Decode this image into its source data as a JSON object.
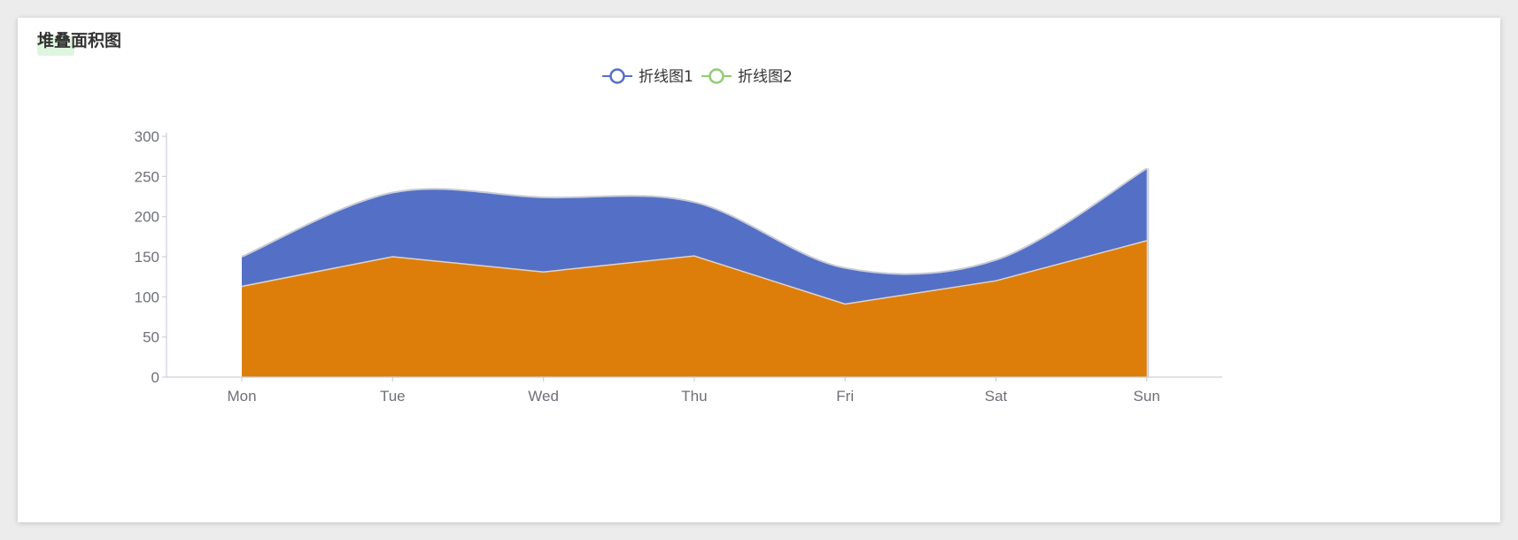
{
  "card": {
    "title": "堆叠面积图"
  },
  "chart_data": {
    "type": "area",
    "stacked": true,
    "categories": [
      "Mon",
      "Tue",
      "Wed",
      "Thu",
      "Fri",
      "Sat",
      "Sun"
    ],
    "series": [
      {
        "name": "折线图1",
        "values": [
          37,
          80,
          93,
          67,
          45,
          26,
          90
        ],
        "color": "#5470c6",
        "smooth": true
      },
      {
        "name": "折线图2",
        "values": [
          113,
          150,
          131,
          151,
          91,
          120,
          170
        ],
        "color": "#dd7e0b",
        "legend_color": "#91cc75",
        "smooth": false
      }
    ],
    "ylim": [
      0,
      300
    ],
    "yticks": [
      0,
      50,
      100,
      150,
      200,
      250,
      300
    ],
    "grid": false,
    "legend_position": "top-center"
  }
}
